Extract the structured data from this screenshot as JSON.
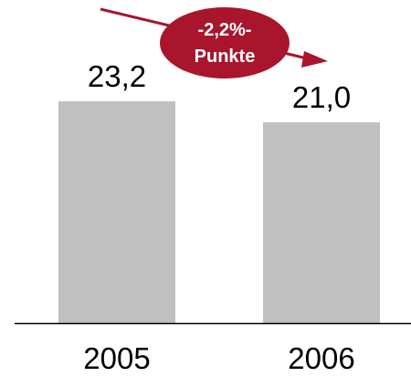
{
  "chart_data": {
    "type": "bar",
    "categories": [
      "2005",
      "2006"
    ],
    "values": [
      23.2,
      21.0
    ],
    "value_labels": [
      "23,2",
      "21,0"
    ],
    "ylim": [
      0,
      23.2
    ],
    "grid": false,
    "legend": "none",
    "colors": {
      "bar": "#c0c0c0",
      "axis": "#000000",
      "text": "#000000",
      "annotation_fill": "#a8152c",
      "annotation_text": "#ffffff"
    },
    "annotation": {
      "line1": "-2,2%-",
      "line2": "Punkte"
    }
  }
}
